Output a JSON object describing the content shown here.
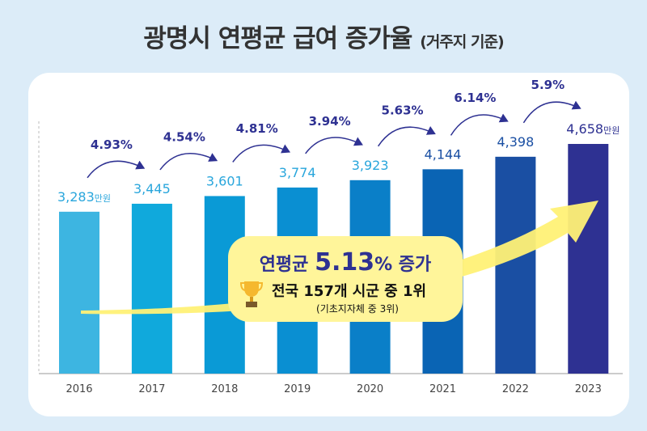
{
  "title": {
    "main": "광명시 연평균 급여 증가율",
    "sub": "(거주지 기준)"
  },
  "chart_data": {
    "type": "bar",
    "categories": [
      "2016",
      "2017",
      "2018",
      "2019",
      "2020",
      "2021",
      "2022",
      "2023"
    ],
    "values": [
      3283,
      3445,
      3601,
      3774,
      3923,
      4144,
      4398,
      4658
    ],
    "value_labels": [
      "3,283",
      "3,445",
      "3,601",
      "3,774",
      "3,923",
      "4,144",
      "4,398",
      "4,658"
    ],
    "unit": "만원",
    "growth_rates": [
      "4.93%",
      "4.54%",
      "4.81%",
      "3.94%",
      "5.63%",
      "6.14%",
      "5.9%"
    ],
    "ylim": [
      0,
      4700
    ],
    "grid": false,
    "bar_colors": [
      "#3db5e1",
      "#10a9dc",
      "#0a9ad6",
      "#0a8fd2",
      "#0a7fc8",
      "#0a64b4",
      "#1a4fa3",
      "#2e3192"
    ],
    "rate_color": "#2e3192",
    "accent_colors": {
      "callout": "#fff59a",
      "arrow": "#fff176"
    }
  },
  "callout": {
    "line1_prefix": "연평균 ",
    "line1_value": "5.13",
    "line1_suffix": "% 증가",
    "line2": "전국 157개 시군 중 1위",
    "line3": "(기초지자체 중 3위)",
    "icon": "trophy-icon"
  }
}
